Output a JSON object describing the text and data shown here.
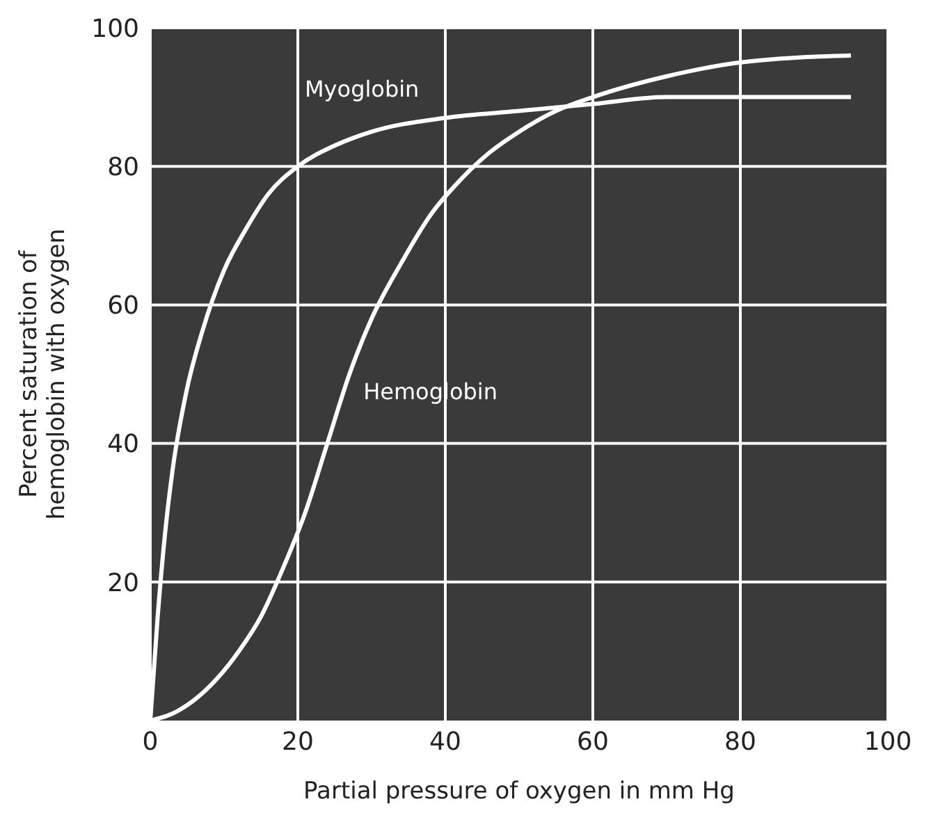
{
  "chart_data": {
    "type": "line",
    "xlabel": "Partial pressure of oxygen in mm Hg",
    "ylabel": "Percent saturation of\nhemoglobin with oxygen",
    "xlim": [
      0,
      100
    ],
    "ylim": [
      0,
      100
    ],
    "xticks": [
      0,
      20,
      40,
      60,
      80,
      100
    ],
    "yticks": [
      20,
      40,
      60,
      80,
      100
    ],
    "grid": true,
    "marker": "none",
    "line_style": "solid",
    "series": [
      {
        "name": "Myoglobin",
        "color": "#ffffff",
        "x": [
          0,
          1,
          2,
          3,
          5,
          7,
          10,
          13,
          16,
          20,
          25,
          30,
          40,
          50,
          60,
          70,
          80,
          95
        ],
        "values": [
          0,
          15,
          27,
          36,
          48,
          56,
          65,
          71,
          76,
          80,
          83,
          85,
          87,
          88,
          89,
          90,
          90,
          90
        ]
      },
      {
        "name": "Hemoglobin",
        "color": "#ffffff",
        "x": [
          0,
          3,
          6,
          9,
          12,
          15,
          18,
          21,
          24,
          27,
          30,
          34,
          38,
          42,
          46,
          50,
          55,
          60,
          70,
          80,
          95
        ],
        "values": [
          0,
          1,
          3,
          6,
          10,
          15,
          22,
          30,
          40,
          50,
          58,
          66,
          73,
          78,
          82,
          85,
          88,
          90,
          93,
          95,
          96
        ]
      }
    ]
  }
}
